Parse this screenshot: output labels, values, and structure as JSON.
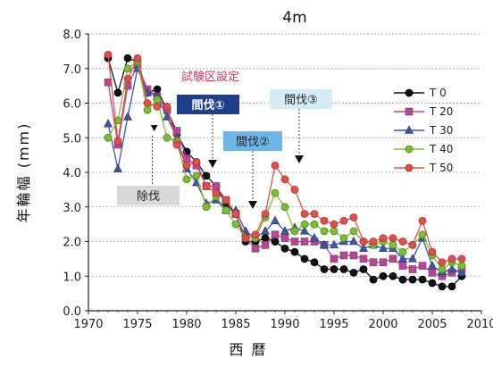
{
  "chart_data": {
    "type": "line",
    "title": "4m",
    "xlabel": "西 暦",
    "ylabel": "年輪幅 (mm)",
    "xlim": [
      1970,
      2010
    ],
    "ylim": [
      0.0,
      8.0
    ],
    "xticks": [
      1970,
      1975,
      1980,
      1985,
      1990,
      1995,
      2000,
      2005,
      2010
    ],
    "yticks": [
      "0.0",
      "1.0",
      "2.0",
      "3.0",
      "4.0",
      "5.0",
      "6.0",
      "7.0",
      "8.0"
    ],
    "grid": "horizontal dotted",
    "legend_position": "right",
    "x": [
      1972,
      1973,
      1974,
      1975,
      1976,
      1977,
      1978,
      1979,
      1980,
      1981,
      1982,
      1983,
      1984,
      1985,
      1986,
      1987,
      1988,
      1989,
      1990,
      1991,
      1992,
      1993,
      1994,
      1995,
      1996,
      1997,
      1998,
      1999,
      2000,
      2001,
      2002,
      2003,
      2004,
      2005,
      2006,
      2007,
      2008
    ],
    "series": [
      {
        "name": "T 0",
        "color": "#111111",
        "marker": "circle",
        "values": [
          7.3,
          6.3,
          7.3,
          7.2,
          6.3,
          6.4,
          5.8,
          5.1,
          4.6,
          4.3,
          3.9,
          3.6,
          3.1,
          2.8,
          2.0,
          2.0,
          2.1,
          2.0,
          1.8,
          1.7,
          1.5,
          1.4,
          1.2,
          1.2,
          1.2,
          1.1,
          1.2,
          0.9,
          1.0,
          1.0,
          0.9,
          0.9,
          0.9,
          0.8,
          0.7,
          0.7,
          1.0
        ]
      },
      {
        "name": "T 20",
        "color": "#c0409a",
        "marker": "square",
        "values": [
          6.6,
          4.8,
          6.5,
          7.1,
          6.4,
          6.2,
          5.8,
          5.2,
          4.4,
          4.2,
          3.6,
          3.6,
          3.2,
          2.8,
          2.1,
          1.8,
          1.9,
          2.2,
          2.1,
          2.0,
          2.0,
          2.0,
          1.9,
          1.5,
          1.6,
          1.6,
          1.5,
          1.4,
          1.4,
          1.5,
          1.3,
          1.2,
          1.3,
          1.1,
          1.0,
          1.1,
          1.2
        ]
      },
      {
        "name": "T 30",
        "color": "#3a55b8",
        "marker": "triangle",
        "values": [
          5.4,
          4.1,
          5.6,
          7.0,
          6.3,
          6.2,
          5.6,
          5.0,
          4.1,
          3.7,
          3.1,
          3.2,
          2.9,
          2.9,
          2.3,
          2.1,
          2.3,
          2.6,
          2.3,
          2.4,
          2.3,
          2.1,
          1.9,
          1.9,
          2.0,
          2.0,
          1.8,
          1.9,
          1.8,
          1.8,
          1.5,
          1.5,
          2.1,
          1.3,
          1.1,
          1.2,
          1.1
        ]
      },
      {
        "name": "T 40",
        "color": "#7cbf2e",
        "marker": "circle",
        "values": [
          5.0,
          5.5,
          7.0,
          7.2,
          5.8,
          6.1,
          5.0,
          4.9,
          3.8,
          3.9,
          3.0,
          3.3,
          2.9,
          2.5,
          2.1,
          2.1,
          2.7,
          3.4,
          3.0,
          2.3,
          2.5,
          2.5,
          2.3,
          2.3,
          2.1,
          2.3,
          2.0,
          1.9,
          2.0,
          1.9,
          1.7,
          1.9,
          2.2,
          1.6,
          1.2,
          1.4,
          1.3
        ]
      },
      {
        "name": "T 50",
        "color": "#e0504a",
        "marker": "circle",
        "values": [
          7.4,
          4.9,
          6.7,
          7.3,
          6.0,
          5.9,
          5.9,
          4.8,
          4.2,
          4.3,
          3.6,
          3.4,
          3.2,
          2.8,
          2.1,
          2.2,
          2.8,
          4.2,
          3.8,
          3.5,
          2.8,
          2.8,
          2.6,
          2.5,
          2.6,
          2.7,
          2.0,
          2.0,
          2.1,
          2.1,
          2.0,
          1.9,
          2.6,
          1.7,
          1.4,
          1.5,
          1.5
        ]
      }
    ],
    "annotations": [
      {
        "text": "試験区設定",
        "year": 1975.5,
        "color": "#d93060"
      },
      {
        "text": "除伐",
        "year": 1976.5,
        "color": "#222222",
        "background": "#d8d8d8"
      },
      {
        "text": "間伐①",
        "year": 1983,
        "color": "#ffffff",
        "background": "#1e3f8a"
      },
      {
        "text": "間伐②",
        "year": 1987,
        "color": "#222222",
        "background": "#6fb6e8"
      },
      {
        "text": "間伐③",
        "year": 1991.5,
        "color": "#222222",
        "background": "#d4ecf8"
      }
    ]
  }
}
